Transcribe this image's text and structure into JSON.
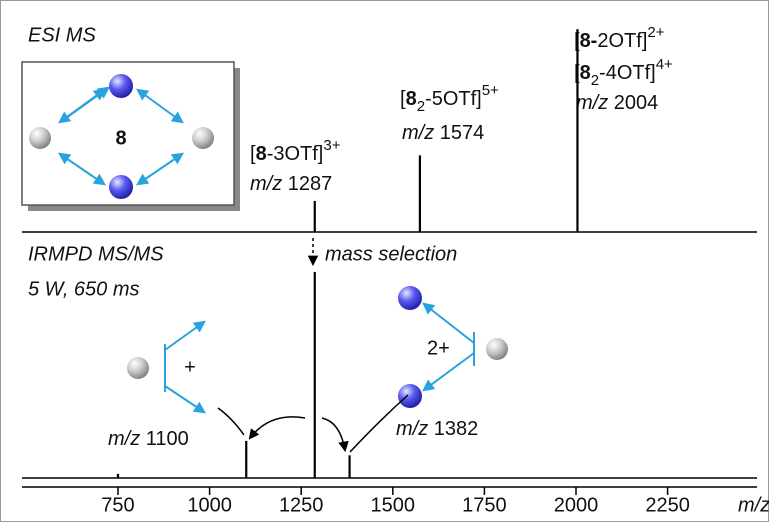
{
  "chart_data": [
    {
      "type": "stick",
      "title": "ESI MS",
      "x": [
        1287,
        1574,
        2004
      ],
      "values": [
        15,
        37,
        98
      ],
      "xlim": [
        488,
        2494
      ],
      "ylim": [
        0,
        100
      ],
      "color": "#000000",
      "annotations": [
        [
          [
            "[",
            "8",
            "-3OTf]",
            "3+"
          ]
        ],
        [
          [
            "[",
            "8",
            "2",
            "-5OTf]",
            "5+"
          ]
        ],
        [
          [
            "[",
            "8-",
            "2OTf]",
            "2+"
          ],
          [
            "[",
            "8",
            "2",
            "-4OTf]",
            "4+"
          ]
        ]
      ],
      "mz_label": "m/z",
      "inset_label": "8"
    },
    {
      "type": "stick",
      "title": "IRMPD MS/MS",
      "subtitle": "5 W, 650 ms",
      "annotation": "mass selection",
      "x": [
        750,
        1100,
        1287,
        1382
      ],
      "values": [
        2,
        18,
        100,
        11
      ],
      "xlim": [
        488,
        2494
      ],
      "ylim": [
        0,
        100
      ],
      "color": "#000000",
      "xticks": [
        750,
        1000,
        1250,
        1500,
        1750,
        2000,
        2250
      ],
      "xlabel": "m/z",
      "fragment_labels": [
        "+",
        "2+"
      ],
      "mz_label": "m/z"
    }
  ]
}
